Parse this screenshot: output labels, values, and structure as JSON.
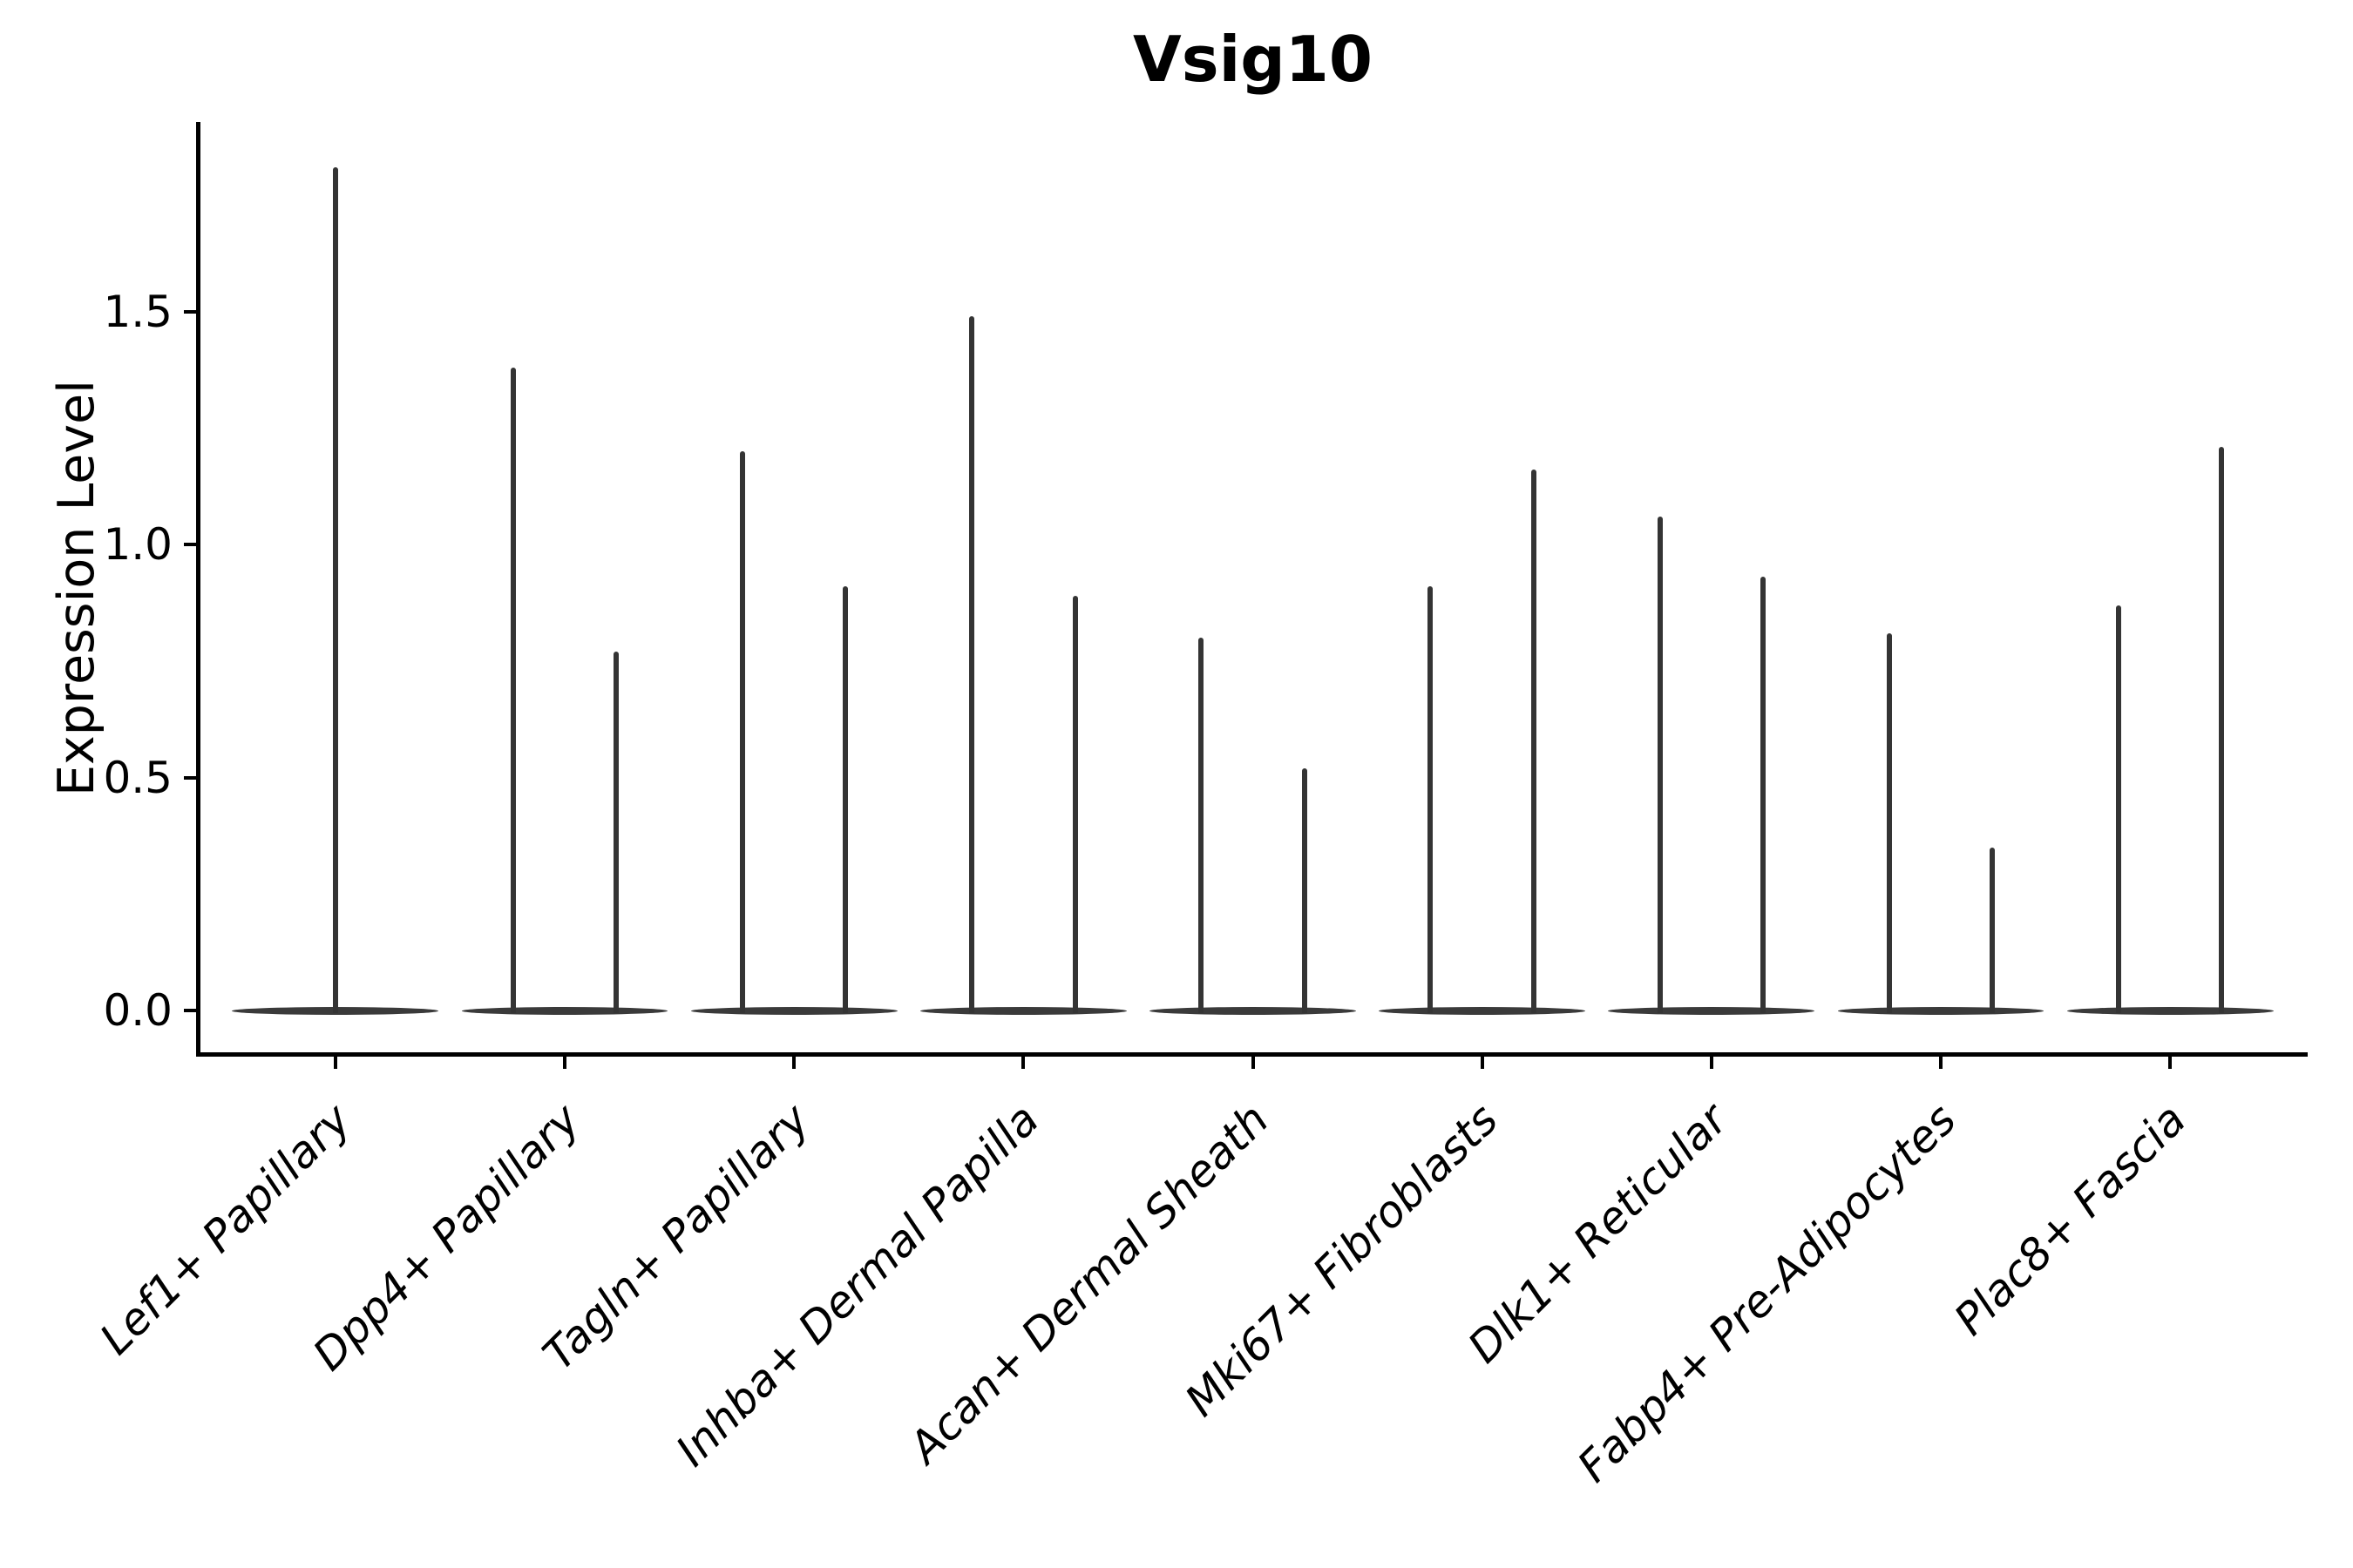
{
  "figure": {
    "title": "Vsig10"
  },
  "y_axis": {
    "label": "Expression Level",
    "tick_labels": [
      "0.0",
      "0.5",
      "1.0",
      "1.5"
    ],
    "tick_values": [
      0.0,
      0.5,
      1.0,
      1.5
    ]
  },
  "x_axis": {
    "categories": [
      "Lef1+ Papillary",
      "Dpp4+ Papillary",
      "Tagln+ Papillary",
      "Inhba+ Dermal Papilla",
      "Acan+ Dermal Sheath",
      "Mki67+ Fibroblasts",
      "Dlk1+ Reticular",
      "Fabp4+ Pre-Adipocytes",
      "Plac8+ Fascia"
    ]
  },
  "chart_data": {
    "type": "violin",
    "title": "Vsig10",
    "xlabel": "",
    "ylabel": "Expression Level",
    "categories": [
      "Lef1+ Papillary",
      "Dpp4+ Papillary",
      "Tagln+ Papillary",
      "Inhba+ Dermal Papilla",
      "Acan+ Dermal Sheath",
      "Mki67+ Fibroblasts",
      "Dlk1+ Reticular",
      "Fabp4+ Pre-Adipocytes",
      "Plac8+ Fascia"
    ],
    "series": [
      {
        "category": "Lef1+ Papillary",
        "spike_max_values": [
          1.81
        ]
      },
      {
        "category": "Dpp4+ Papillary",
        "spike_max_values": [
          1.38,
          0.77
        ]
      },
      {
        "category": "Tagln+ Papillary",
        "spike_max_values": [
          1.2,
          0.91
        ]
      },
      {
        "category": "Inhba+ Dermal Papilla",
        "spike_max_values": [
          1.49,
          0.89
        ]
      },
      {
        "category": "Acan+ Dermal Sheath",
        "spike_max_values": [
          0.8,
          0.52
        ]
      },
      {
        "category": "Mki67+ Fibroblasts",
        "spike_max_values": [
          0.91,
          1.16
        ]
      },
      {
        "category": "Dlk1+ Reticular",
        "spike_max_values": [
          1.06,
          0.93
        ]
      },
      {
        "category": "Fabp4+ Pre-Adipocytes",
        "spike_max_values": [
          0.81,
          0.35
        ]
      },
      {
        "category": "Plac8+ Fascia",
        "spike_max_values": [
          0.87,
          1.21
        ]
      }
    ],
    "baseline_value": 0.0,
    "y_ticks": [
      0.0,
      0.5,
      1.0,
      1.5
    ],
    "ylim": [
      -0.093,
      1.9
    ],
    "grid": false,
    "legend_position": "none",
    "description": "Violin plot of Vsig10 expression; each violin collapses to a flat disk at 0 with thin spikes reaching the maximum expression values"
  },
  "colors": {
    "background": "#ffffff",
    "axis": "#000000",
    "text": "#000000",
    "violin_base": "#3a3a3a",
    "violin_spike": "#343434"
  }
}
